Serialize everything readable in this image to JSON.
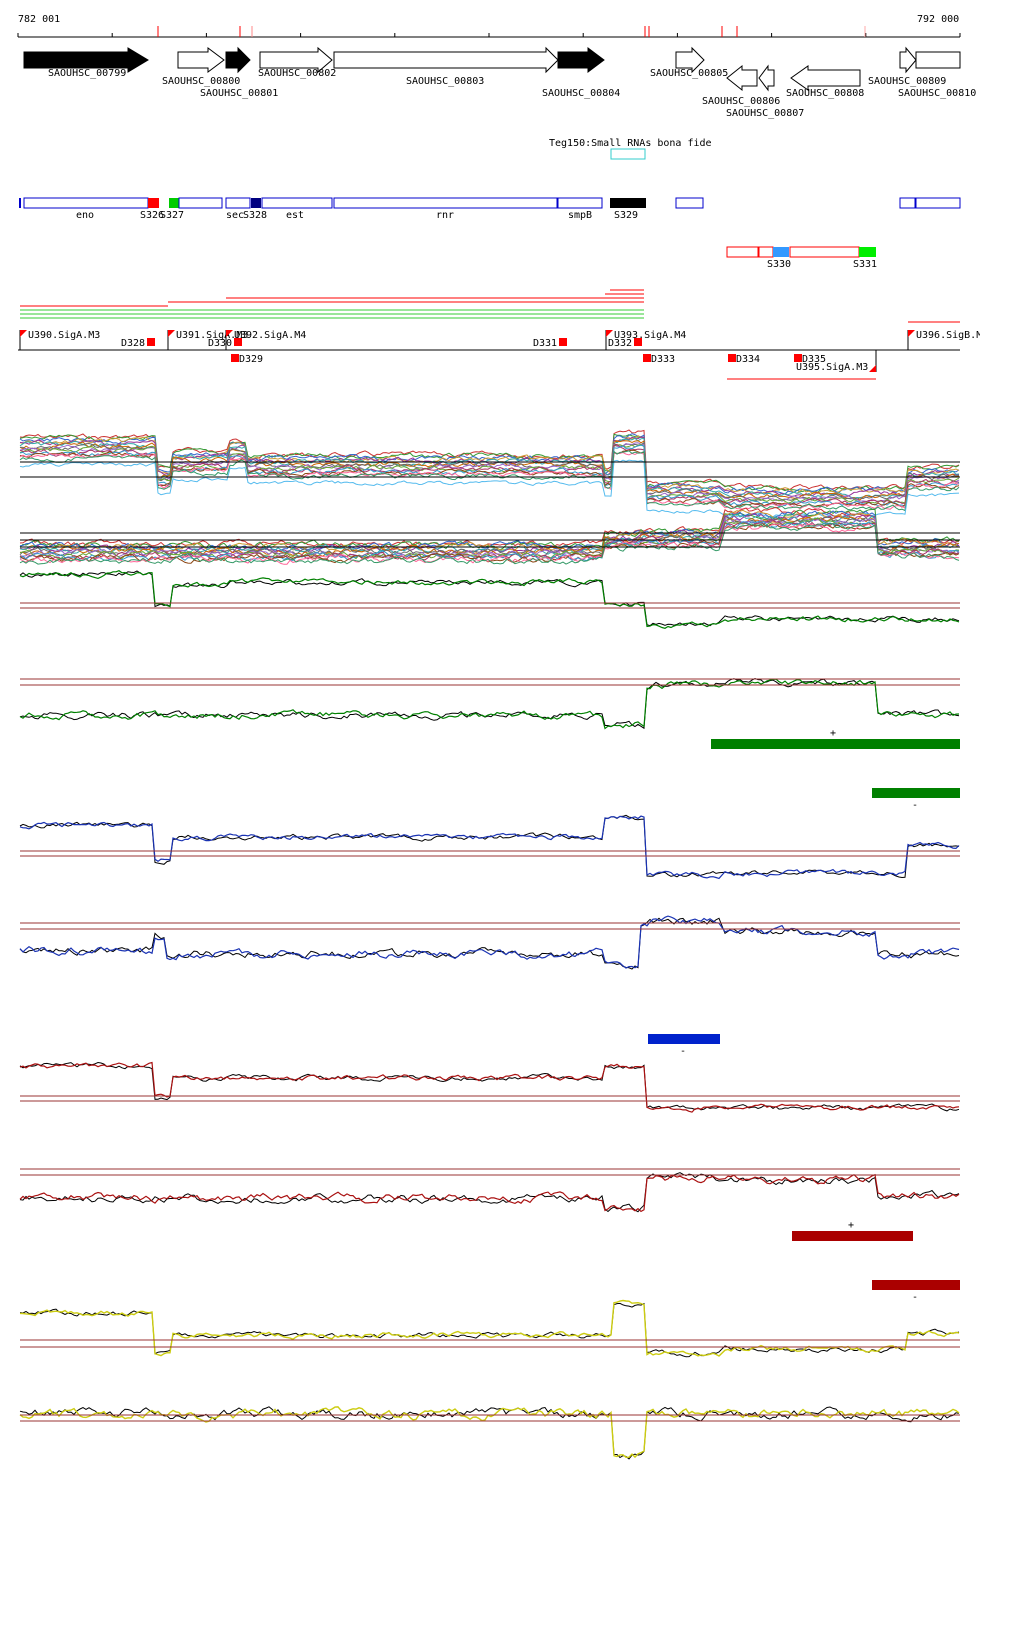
{
  "coords": {
    "start": "782 001",
    "end": "792 000"
  },
  "genes": [
    {
      "name": "SAOUHSC_00799",
      "strand": "+",
      "filled": true
    },
    {
      "name": "SAOUHSC_00800",
      "strand": "+",
      "filled": false
    },
    {
      "name": "SAOUHSC_00801",
      "strand": "+",
      "filled": true
    },
    {
      "name": "SAOUHSC_00802",
      "strand": "+",
      "filled": false
    },
    {
      "name": "SAOUHSC_00803",
      "strand": "+",
      "filled": false
    },
    {
      "name": "SAOUHSC_00804",
      "strand": "+",
      "filled": true
    },
    {
      "name": "SAOUHSC_00805",
      "strand": "+",
      "filled": false
    },
    {
      "name": "SAOUHSC_00806",
      "strand": "-",
      "filled": false
    },
    {
      "name": "SAOUHSC_00807",
      "strand": "-",
      "filled": false
    },
    {
      "name": "SAOUHSC_00808",
      "strand": "-",
      "filled": false
    },
    {
      "name": "SAOUHSC_00809",
      "strand": "+",
      "filled": false
    },
    {
      "name": "SAOUHSC_00810",
      "strand": "+",
      "filled": false
    }
  ],
  "small_rna_label": "Teg150:Small RNAs bona fide",
  "annotation_labels": [
    "eno",
    "S326",
    "S327",
    "sec",
    "S328",
    "est",
    "rnr",
    "smpB",
    "S329",
    "S330",
    "S331"
  ],
  "promoter_labels": [
    "U390.SigA.M3",
    "U391.SigA.M3",
    "U392.SigA.M4",
    "U393.SigA.M4",
    "U395.SigA.M3",
    "U396.SigB.M"
  ],
  "downstream_labels": [
    "D328",
    "D329",
    "D330",
    "D331",
    "D332",
    "D333",
    "D334",
    "D335"
  ],
  "strand_markers": {
    "plus": "+",
    "minus": "-"
  },
  "colors": {
    "gene_outline": "#000000",
    "annotation_blue": "#0000cc",
    "annotation_red": "#ff0000",
    "green": "#008000",
    "blue": "#1a33b3",
    "red": "#aa1111",
    "yellow": "#cccc11",
    "threshold": "#993333",
    "cyan": "#33cccc"
  }
}
